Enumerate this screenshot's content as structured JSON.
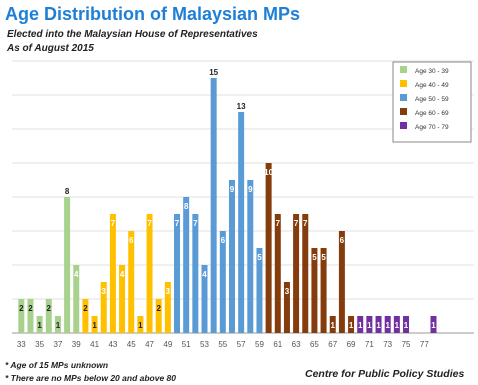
{
  "header": {
    "title": "Age Distribution of Malaysian MPs",
    "subtitle_line1": "Elected into the Malaysian House of Representatives",
    "subtitle_line2": "As of August 2015"
  },
  "footer": {
    "note1": "* Age of 15 MPs unknown",
    "note2": "* There are no MPs below 20 and above 80",
    "source": "Centre for Public Policy Studies"
  },
  "chart_data": {
    "type": "bar",
    "title": "Age Distribution of Malaysian MPs",
    "xlabel": "",
    "ylabel": "",
    "ylim": [
      0,
      16
    ],
    "x": [
      33,
      34,
      35,
      36,
      37,
      38,
      39,
      40,
      41,
      42,
      43,
      44,
      45,
      46,
      47,
      48,
      49,
      50,
      51,
      52,
      53,
      54,
      55,
      56,
      57,
      58,
      59,
      60,
      61,
      62,
      63,
      64,
      65,
      66,
      67,
      68,
      69,
      70,
      71,
      72,
      73,
      74,
      75,
      76,
      77,
      78
    ],
    "values": [
      2,
      2,
      1,
      2,
      1,
      8,
      4,
      2,
      1,
      3,
      7,
      4,
      6,
      1,
      7,
      2,
      3,
      7,
      8,
      7,
      4,
      15,
      6,
      9,
      13,
      9,
      5,
      10,
      7,
      3,
      7,
      7,
      5,
      5,
      1,
      6,
      1,
      1,
      1,
      1,
      1,
      1,
      1,
      null,
      null,
      1
    ],
    "x_tick_labels": [
      "33",
      "35",
      "37",
      "39",
      "41",
      "43",
      "45",
      "47",
      "49",
      "51",
      "53",
      "55",
      "57",
      "59",
      "61",
      "63",
      "65",
      "67",
      "69",
      "71",
      "73",
      "75",
      "77"
    ],
    "series": [
      {
        "name": "Age 30 - 39",
        "color": "#a9d18e",
        "from": 30,
        "to": 39
      },
      {
        "name": "Age 40 - 49",
        "color": "#ffc000",
        "from": 40,
        "to": 49
      },
      {
        "name": "Age 50 - 59",
        "color": "#5b9bd5",
        "from": 50,
        "to": 59
      },
      {
        "name": "Age 60 - 69",
        "color": "#843c0c",
        "from": 60,
        "to": 69
      },
      {
        "name": "Age 70 - 79",
        "color": "#7030a0",
        "from": 70,
        "to": 79
      }
    ],
    "legend_position": "top-right",
    "grid": true
  }
}
